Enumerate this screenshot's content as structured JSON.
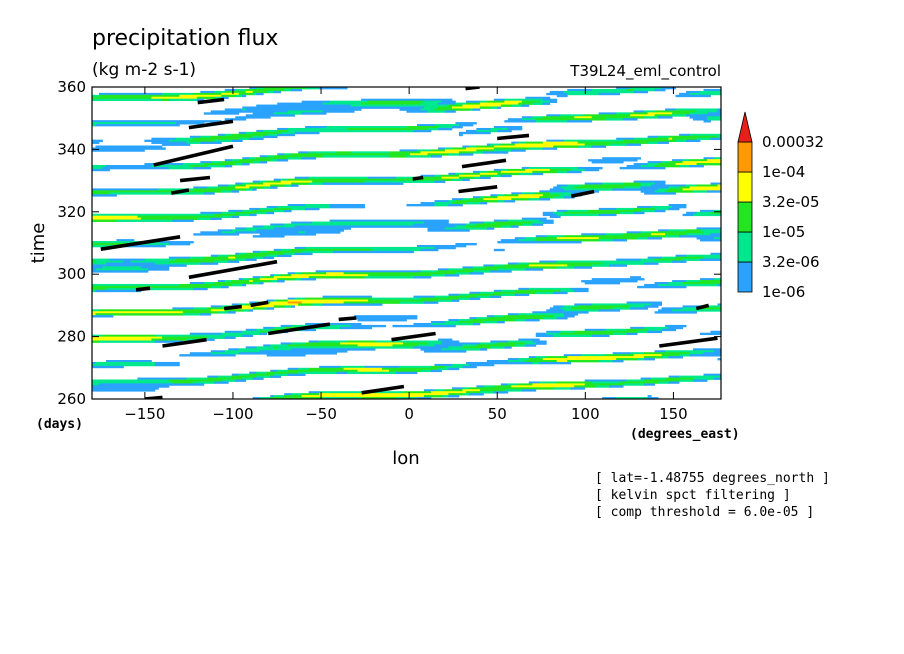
{
  "chart_data": {
    "type": "heatmap",
    "title": "precipitation flux",
    "units": "(kg m-2 s-1)",
    "experiment": "T39L24_eml_control",
    "xlabel": "lon",
    "ylabel": "time",
    "x_unit_label": "(degrees_east)",
    "y_unit_label": "(days)",
    "xlim": [
      -180,
      177
    ],
    "ylim": [
      260,
      360
    ],
    "x_ticks": [
      -150,
      -100,
      -50,
      0,
      50,
      100,
      150
    ],
    "y_ticks": [
      260,
      280,
      300,
      320,
      340,
      360
    ],
    "contour_levels": [
      "1e-06",
      "3.2e-06",
      "1e-05",
      "3.2e-05",
      "1e-04",
      "0.00032"
    ],
    "level_colors": [
      "#2aa3ff",
      "#00e88e",
      "#22e622",
      "#ffff00",
      "#ff9900",
      "#e8201a"
    ],
    "propagation": "eastward (Kelvin wave filtered)",
    "annotations": [
      "[ lat=-1.48755 degrees_north ]",
      "[ kelvin spct filtering ]",
      "[ comp threshold = 6.0e-05 ]"
    ]
  }
}
